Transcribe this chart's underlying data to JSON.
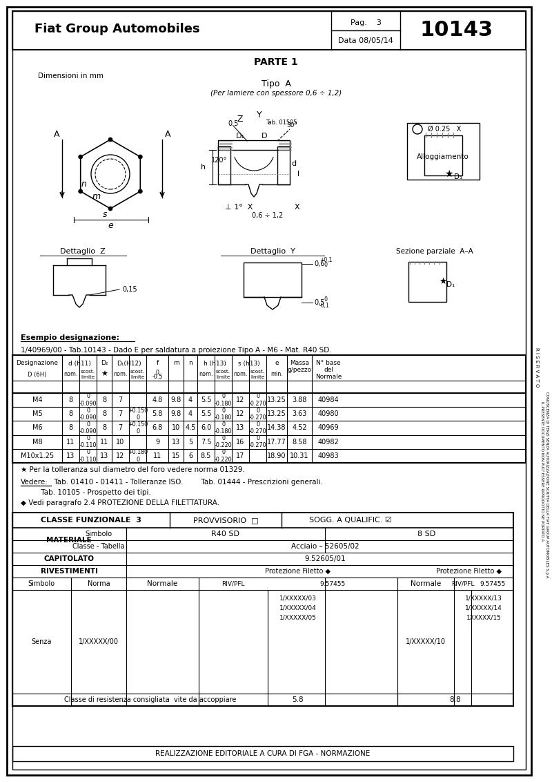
{
  "title_company": "Fiat Group Automobiles",
  "title_pag": "Pag.    3",
  "title_data": "Data 08/05/14",
  "title_num": "10143",
  "parte": "PARTE 1",
  "tipo": "Tipo  A",
  "tipo_note": "(Per lamiere con spessore 0,6 ÷ 1,2)",
  "dim_note": "Dimensioni in mm",
  "esempio_title": "Esempio designazione:",
  "esempio_text": "1/40969/00 - Tab.10143 - Dado E per saldatura a proiezione Tipo A - M6 - Mat. R40 SD.",
  "note1": "★ Per la tolleranza sul diametro del foro vedere norma 01329.",
  "note2_vedere": "Vedere:",
  "note2_text": " Tab. 01410 - 01411 - Tolleranze ISO.        Tab. 01444 - Prescrizioni generali.",
  "note3": "         Tab. 10105 - Prospetto dei tipi.",
  "note4": "◆ Vedi paragrafo 2.4 PROTEZIONE DELLA FILETTATURA.",
  "alloggiamento": "Alloggiamento",
  "dettaglio_z": "Dettaglio  Z",
  "dettaglio_y": "Dettaglio  Y",
  "sezione": "Sezione parziale  A–A",
  "mat_classe": "CLASSE FUNZIONALE  3",
  "mat_provvisorio": "PROVVISORIO  □",
  "mat_sogg": "SOGG. A QUALIFIC. ☑",
  "mat_simbolo1": "R40 SD",
  "mat_simbolo2": "8 SD",
  "mat_classe_tabella": "Acciaio – 52605/02",
  "mat_capitolato": "9.52605/01",
  "classe_res": "Classe di resistenza consigliata  vite da accoppiare",
  "classe_val1": "5.8",
  "classe_val2": "8.8",
  "footer": "REALIZZAZIONE EDITORIALE A CURA DI FGA - NORMAZIONE",
  "bg_color": "#ffffff",
  "row_data": [
    [
      "M4",
      "8",
      "0\n-0.090",
      "8",
      "7",
      "",
      "4.8",
      "9.8",
      "4",
      "5.5",
      "0\n-0.180",
      "12",
      "0\n-0.270",
      "13.25",
      "3.88",
      "40984"
    ],
    [
      "M5",
      "8",
      "0\n-0.090",
      "8",
      "7",
      "+0.150\n0",
      "5.8",
      "9.8",
      "4",
      "5.5",
      "0\n-0.180",
      "12",
      "0\n-0.270",
      "13.25",
      "3.63",
      "40980"
    ],
    [
      "M6",
      "8",
      "0\n-0.090",
      "8",
      "7",
      "+0.150\n0",
      "6.8",
      "10",
      "4.5",
      "6.0",
      "0\n-0.180",
      "13",
      "0\n-0.270",
      "14.38",
      "4.52",
      "40969"
    ],
    [
      "M8",
      "11",
      "0\n-0.110",
      "11",
      "10",
      "",
      "9",
      "13",
      "5",
      "7.5",
      "0\n-0.220",
      "16",
      "0\n-0.270",
      "17.77",
      "8.58",
      "40982"
    ],
    [
      "M10x1.25",
      "13",
      "0\n-0.110",
      "13",
      "12",
      "+0.180\n0",
      "11",
      "15",
      "6",
      "8.5",
      "0\n-0.220",
      "17",
      "",
      "18.90",
      "10.31",
      "40983"
    ]
  ],
  "riv_codes1": [
    "1/XXXXX/03",
    "1/XXXXX/04",
    "1/XXXXX/05"
  ],
  "riv_codes2": [
    "1/XXXXX/13",
    "1/XXXXX/14",
    "1XXXXX/15"
  ]
}
